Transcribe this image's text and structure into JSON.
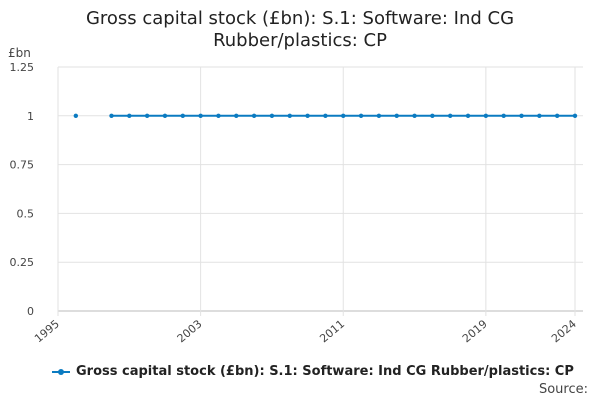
{
  "chart_data": {
    "type": "line",
    "title": "Gross capital stock (£bn): S.1: Software: Ind CG Rubber/plastics: CP",
    "ylabel": "£bn",
    "ylim": [
      0,
      1.25
    ],
    "yticks": [
      "0",
      "0.25",
      "0.5",
      "0.75",
      "1",
      "1.25"
    ],
    "xlim": [
      1995,
      2024
    ],
    "xticks": [
      "1995",
      "2003",
      "2011",
      "2019",
      "2024"
    ],
    "grid": true,
    "legend_position": "bottom",
    "series": [
      {
        "name": "Gross capital stock (£bn): S.1: Software: Ind CG Rubber/plastics: CP",
        "color": "#0b7bc1",
        "points": [
          [
            1996,
            1
          ],
          [
            1998,
            1
          ],
          [
            1999,
            1
          ],
          [
            2000,
            1
          ],
          [
            2001,
            1
          ],
          [
            2002,
            1
          ],
          [
            2003,
            1
          ],
          [
            2004,
            1
          ],
          [
            2005,
            1
          ],
          [
            2006,
            1
          ],
          [
            2007,
            1
          ],
          [
            2008,
            1
          ],
          [
            2009,
            1
          ],
          [
            2010,
            1
          ],
          [
            2011,
            1
          ],
          [
            2012,
            1
          ],
          [
            2013,
            1
          ],
          [
            2014,
            1
          ],
          [
            2015,
            1
          ],
          [
            2016,
            1
          ],
          [
            2017,
            1
          ],
          [
            2018,
            1
          ],
          [
            2019,
            1
          ],
          [
            2020,
            1
          ],
          [
            2021,
            1
          ],
          [
            2022,
            1
          ],
          [
            2023,
            1
          ],
          [
            2024,
            1
          ]
        ]
      }
    ]
  },
  "footer": {
    "source": "Source:"
  }
}
